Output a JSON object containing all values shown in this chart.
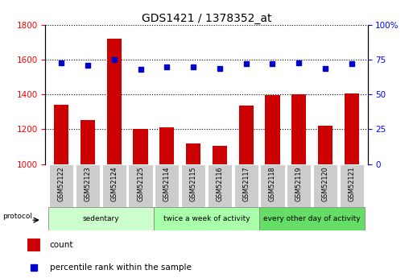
{
  "title": "GDS1421 / 1378352_at",
  "samples": [
    "GSM52122",
    "GSM52123",
    "GSM52124",
    "GSM52125",
    "GSM52114",
    "GSM52115",
    "GSM52116",
    "GSM52117",
    "GSM52118",
    "GSM52119",
    "GSM52120",
    "GSM52121"
  ],
  "count_values": [
    1340,
    1255,
    1720,
    1200,
    1210,
    1120,
    1105,
    1335,
    1395,
    1400,
    1220,
    1405
  ],
  "percentile_values": [
    73,
    71,
    75,
    68,
    70,
    70,
    69,
    72,
    72,
    73,
    69,
    72
  ],
  "ylim_left": [
    1000,
    1800
  ],
  "ylim_right": [
    0,
    100
  ],
  "yticks_left": [
    1000,
    1200,
    1400,
    1600,
    1800
  ],
  "yticks_right": [
    0,
    25,
    50,
    75,
    100
  ],
  "bar_color": "#cc0000",
  "dot_color": "#0000cc",
  "bar_width": 0.55,
  "groups": [
    {
      "label": "sedentary",
      "start": 0,
      "end": 3,
      "color": "#ccffcc"
    },
    {
      "label": "twice a week of activity",
      "start": 4,
      "end": 7,
      "color": "#aaffaa"
    },
    {
      "label": "every other day of activity",
      "start": 8,
      "end": 11,
      "color": "#66dd66"
    }
  ],
  "legend_count_label": "count",
  "legend_pct_label": "percentile rank within the sample",
  "protocol_label": "protocol"
}
